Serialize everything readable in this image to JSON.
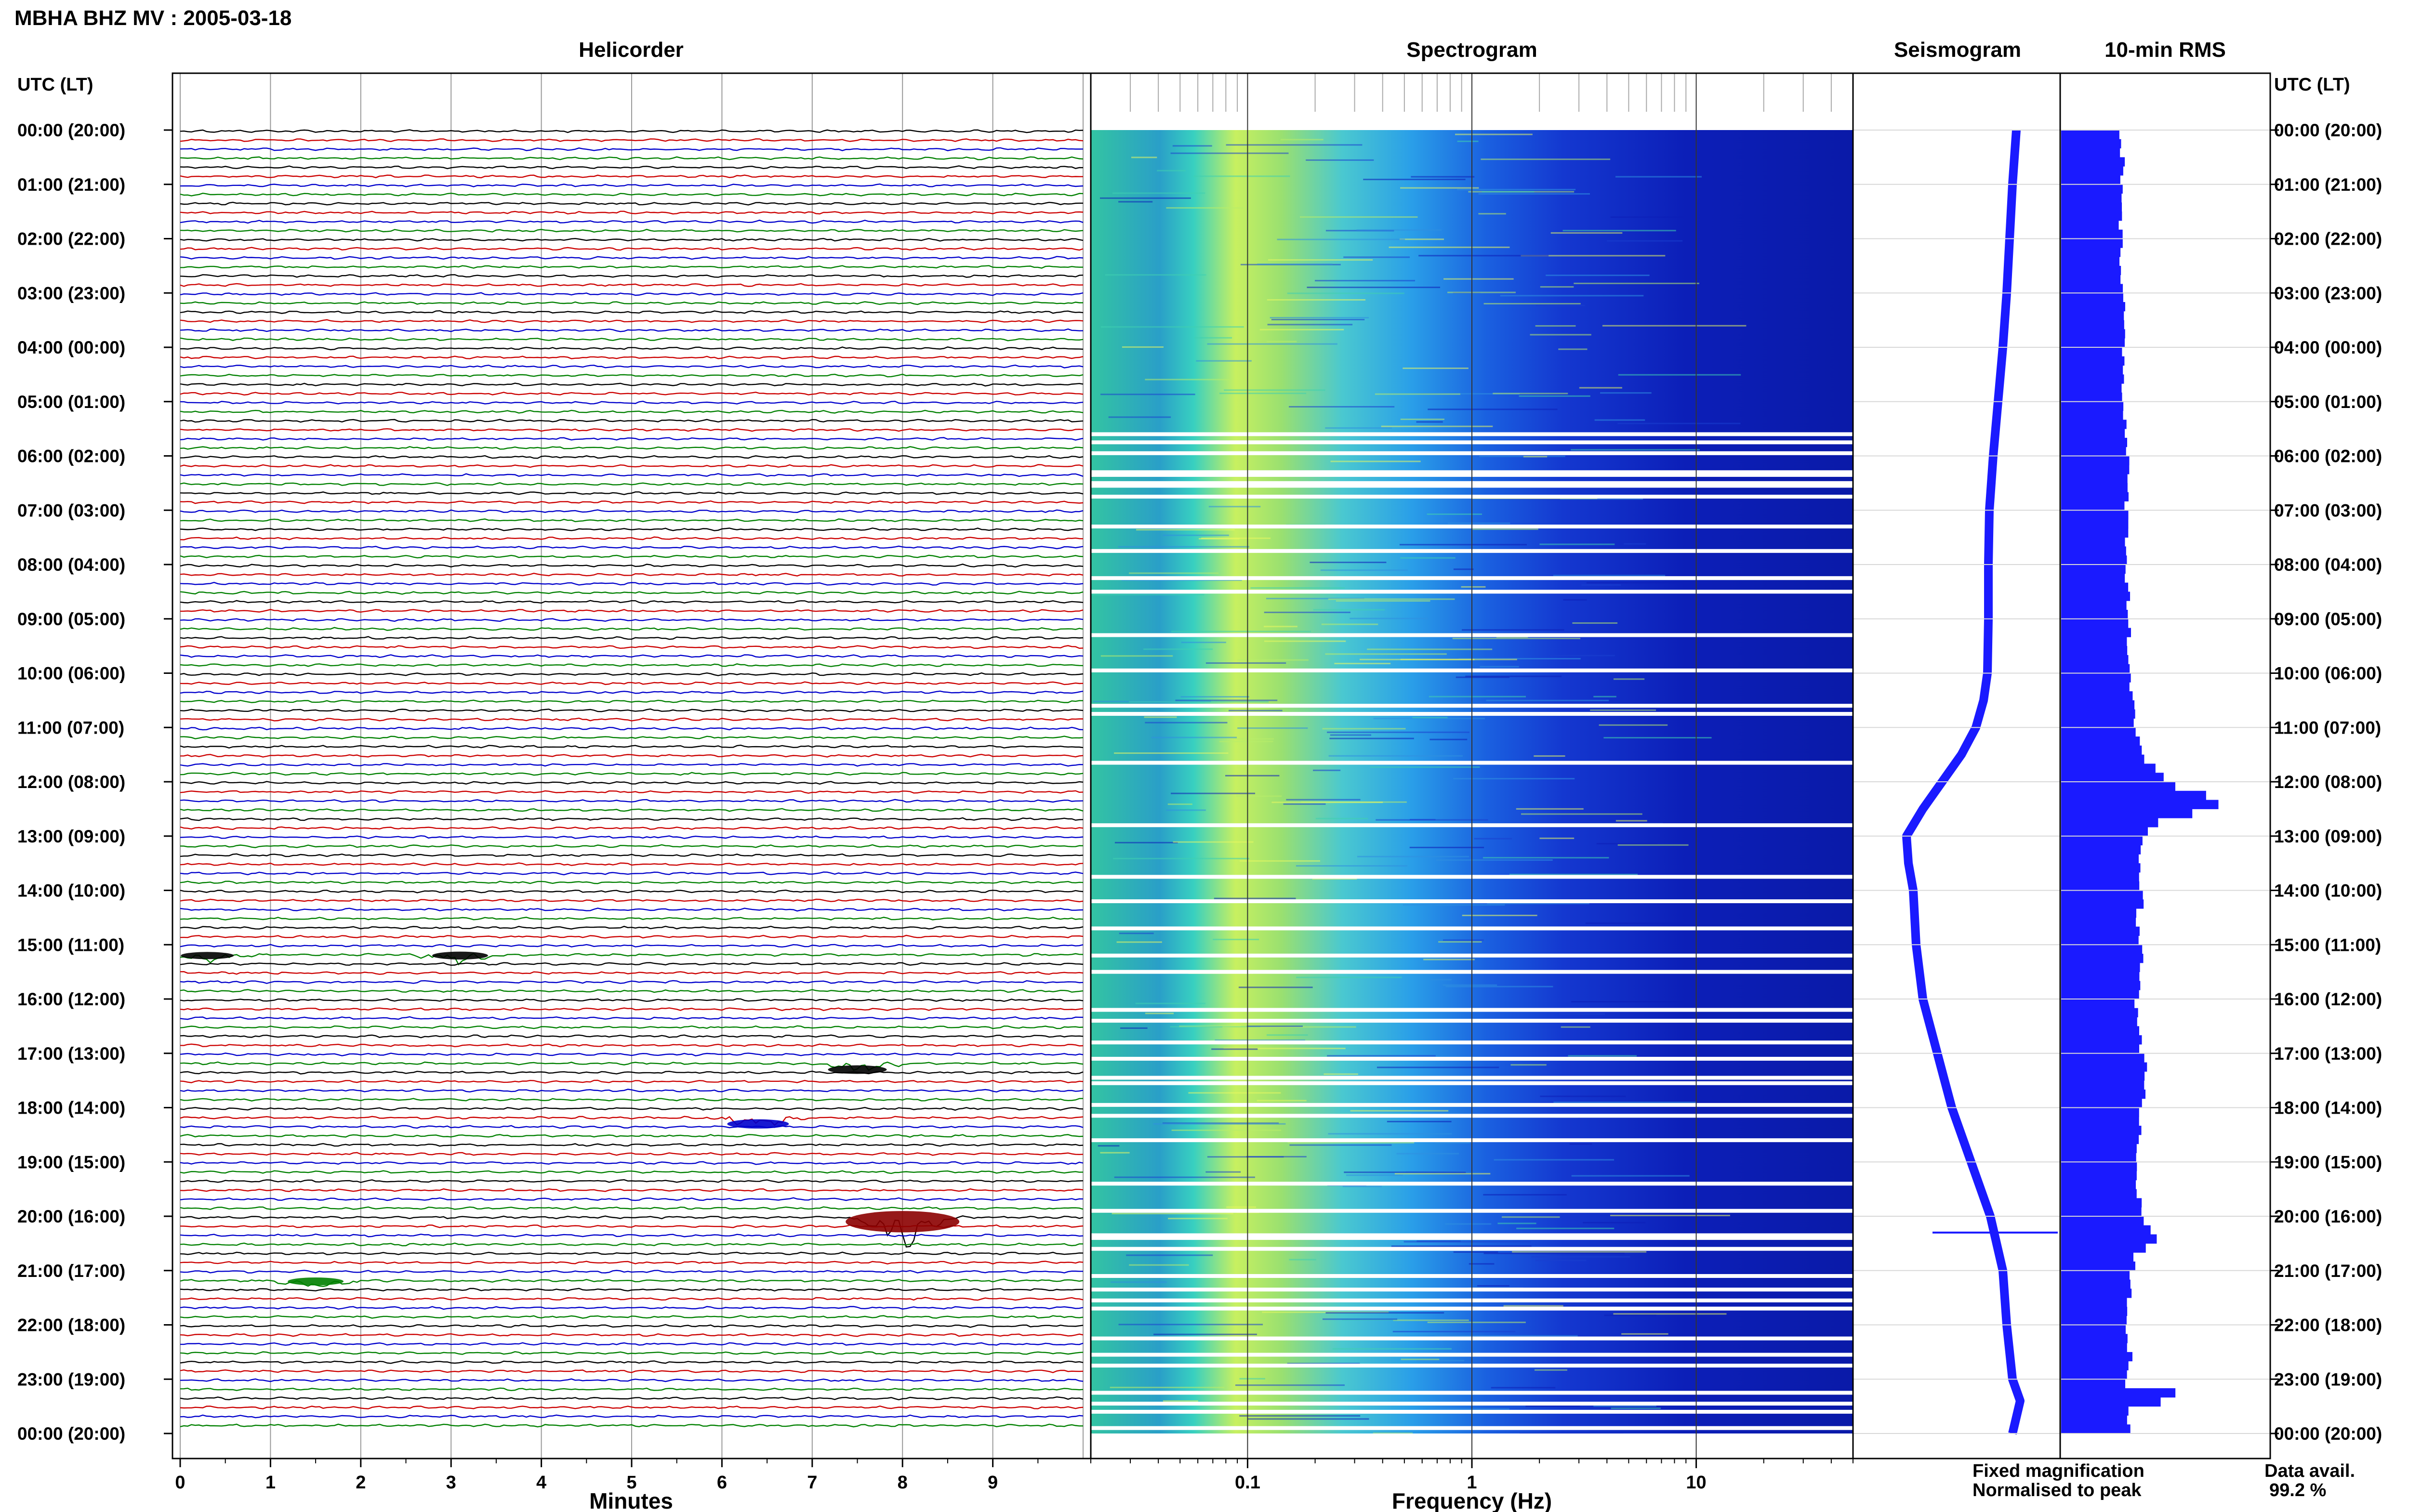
{
  "header": {
    "station_title": "MBHA BHZ MV : 2005-03-18"
  },
  "panels": {
    "helicorder": "Helicorder",
    "spectrogram": "Spectrogram",
    "seismogram": "Seismogram",
    "rms": "10-min RMS"
  },
  "axis": {
    "time_header_left": "UTC (LT)",
    "time_header_right": "UTC (LT)",
    "helicorder_xlabel": "Minutes",
    "spectrogram_xlabel": "Frequency (Hz)"
  },
  "legend": {
    "fixed": "Fixed magnification",
    "normalised": "Normalised to peak",
    "fixed_color": "#1a1aff",
    "normalised_color": "#e8001c"
  },
  "availability": {
    "label": "Data avail.",
    "value": "99.2 %"
  },
  "chart_data": {
    "type": "heatmap",
    "hour_labels": [
      "00:00 (20:00)",
      "01:00 (21:00)",
      "02:00 (22:00)",
      "03:00 (23:00)",
      "04:00 (00:00)",
      "05:00 (01:00)",
      "06:00 (02:00)",
      "07:00 (03:00)",
      "08:00 (04:00)",
      "09:00 (05:00)",
      "10:00 (06:00)",
      "11:00 (07:00)",
      "12:00 (08:00)",
      "13:00 (09:00)",
      "14:00 (10:00)",
      "15:00 (11:00)",
      "16:00 (12:00)",
      "17:00 (13:00)",
      "18:00 (14:00)",
      "19:00 (15:00)",
      "20:00 (16:00)",
      "21:00 (17:00)",
      "22:00 (18:00)",
      "23:00 (19:00)",
      "00:00 (20:00)"
    ],
    "helicorder": {
      "minute_ticks": [
        "0",
        "1",
        "2",
        "3",
        "4",
        "5",
        "6",
        "7",
        "8",
        "9"
      ],
      "xlim": [
        0,
        10
      ],
      "rows_per_hour": 6,
      "row_colors": [
        "#000000",
        "#cc0000",
        "#0000cc",
        "#008000"
      ],
      "events": [
        {
          "hour": 15.2,
          "minute": 0.3,
          "amp": 0.5,
          "color": "#000000"
        },
        {
          "hour": 15.2,
          "minute": 3.1,
          "amp": 0.6,
          "color": "#000000"
        },
        {
          "hour": 17.3,
          "minute": 7.5,
          "amp": 0.7,
          "color": "#000000"
        },
        {
          "hour": 18.3,
          "minute": 6.4,
          "amp": 0.8,
          "color": "#0000cc"
        },
        {
          "hour": 20.1,
          "minute": 8.0,
          "amp": 2.6,
          "color": "#8b0000"
        },
        {
          "hour": 21.2,
          "minute": 1.5,
          "amp": 0.6,
          "color": "#008000"
        }
      ]
    },
    "spectrogram": {
      "x_scale": "log",
      "xlim": [
        0.02,
        50
      ],
      "tick_labels": [
        "0.1",
        "1",
        "10"
      ],
      "tick_values": [
        0.1,
        1,
        10
      ],
      "peak_band_hz": [
        0.15,
        0.3
      ],
      "gap_hours": [
        5.6,
        5.75,
        5.95,
        6.3,
        6.35,
        6.5,
        6.55,
        6.75,
        7.3,
        7.75,
        8.25,
        8.5,
        9.3,
        9.95,
        10.6,
        10.75,
        11.65,
        12.8,
        13.75,
        14.2,
        14.7,
        15.2,
        15.5,
        16.2,
        16.4,
        16.8,
        17.1,
        17.45,
        17.55,
        17.95,
        18.15,
        18.6,
        19.4,
        19.9,
        20.35,
        20.4,
        20.6,
        21.1,
        21.35,
        21.55,
        21.7,
        22.25,
        22.55,
        22.75,
        23.25,
        23.45,
        23.6,
        23.9
      ]
    },
    "seismogram": {
      "hours": [
        0,
        1,
        2,
        3,
        4,
        5,
        6,
        7,
        8,
        9,
        10,
        10.5,
        11,
        11.5,
        12,
        12.5,
        13,
        13.5,
        14,
        15,
        16,
        17,
        18,
        19,
        20,
        21,
        22,
        23,
        23.4,
        24
      ],
      "offset": [
        0.62,
        0.58,
        0.55,
        0.52,
        0.48,
        0.43,
        0.38,
        0.34,
        0.33,
        0.33,
        0.32,
        0.28,
        0.2,
        0.05,
        -0.15,
        -0.35,
        -0.52,
        -0.5,
        -0.45,
        -0.42,
        -0.35,
        -0.2,
        -0.05,
        0.15,
        0.35,
        0.48,
        0.52,
        0.58,
        0.66,
        0.58
      ]
    },
    "rms": {
      "hours": [
        0,
        0.5,
        1,
        2,
        3,
        4,
        5,
        6,
        7,
        8,
        9,
        10,
        10.5,
        11,
        11.5,
        11.8,
        12,
        12.2,
        12.4,
        12.6,
        13,
        13.5,
        14,
        14.5,
        15,
        16,
        17,
        17.5,
        18,
        19,
        19.5,
        20,
        20.3,
        20.6,
        21,
        22,
        22.5,
        23,
        23.2,
        23.5,
        24
      ],
      "values": [
        0.9,
        1.0,
        0.95,
        0.95,
        1.0,
        1.0,
        1.0,
        1.05,
        1.05,
        1.05,
        1.08,
        1.1,
        1.15,
        1.2,
        1.35,
        1.55,
        1.8,
        2.35,
        2.45,
        1.6,
        1.25,
        1.25,
        1.3,
        1.2,
        1.3,
        1.2,
        1.3,
        1.35,
        1.25,
        1.2,
        1.25,
        1.3,
        1.55,
        1.2,
        1.1,
        1.05,
        1.1,
        1.05,
        2.0,
        1.1,
        1.05
      ],
      "xlim": [
        0,
        3
      ]
    }
  }
}
